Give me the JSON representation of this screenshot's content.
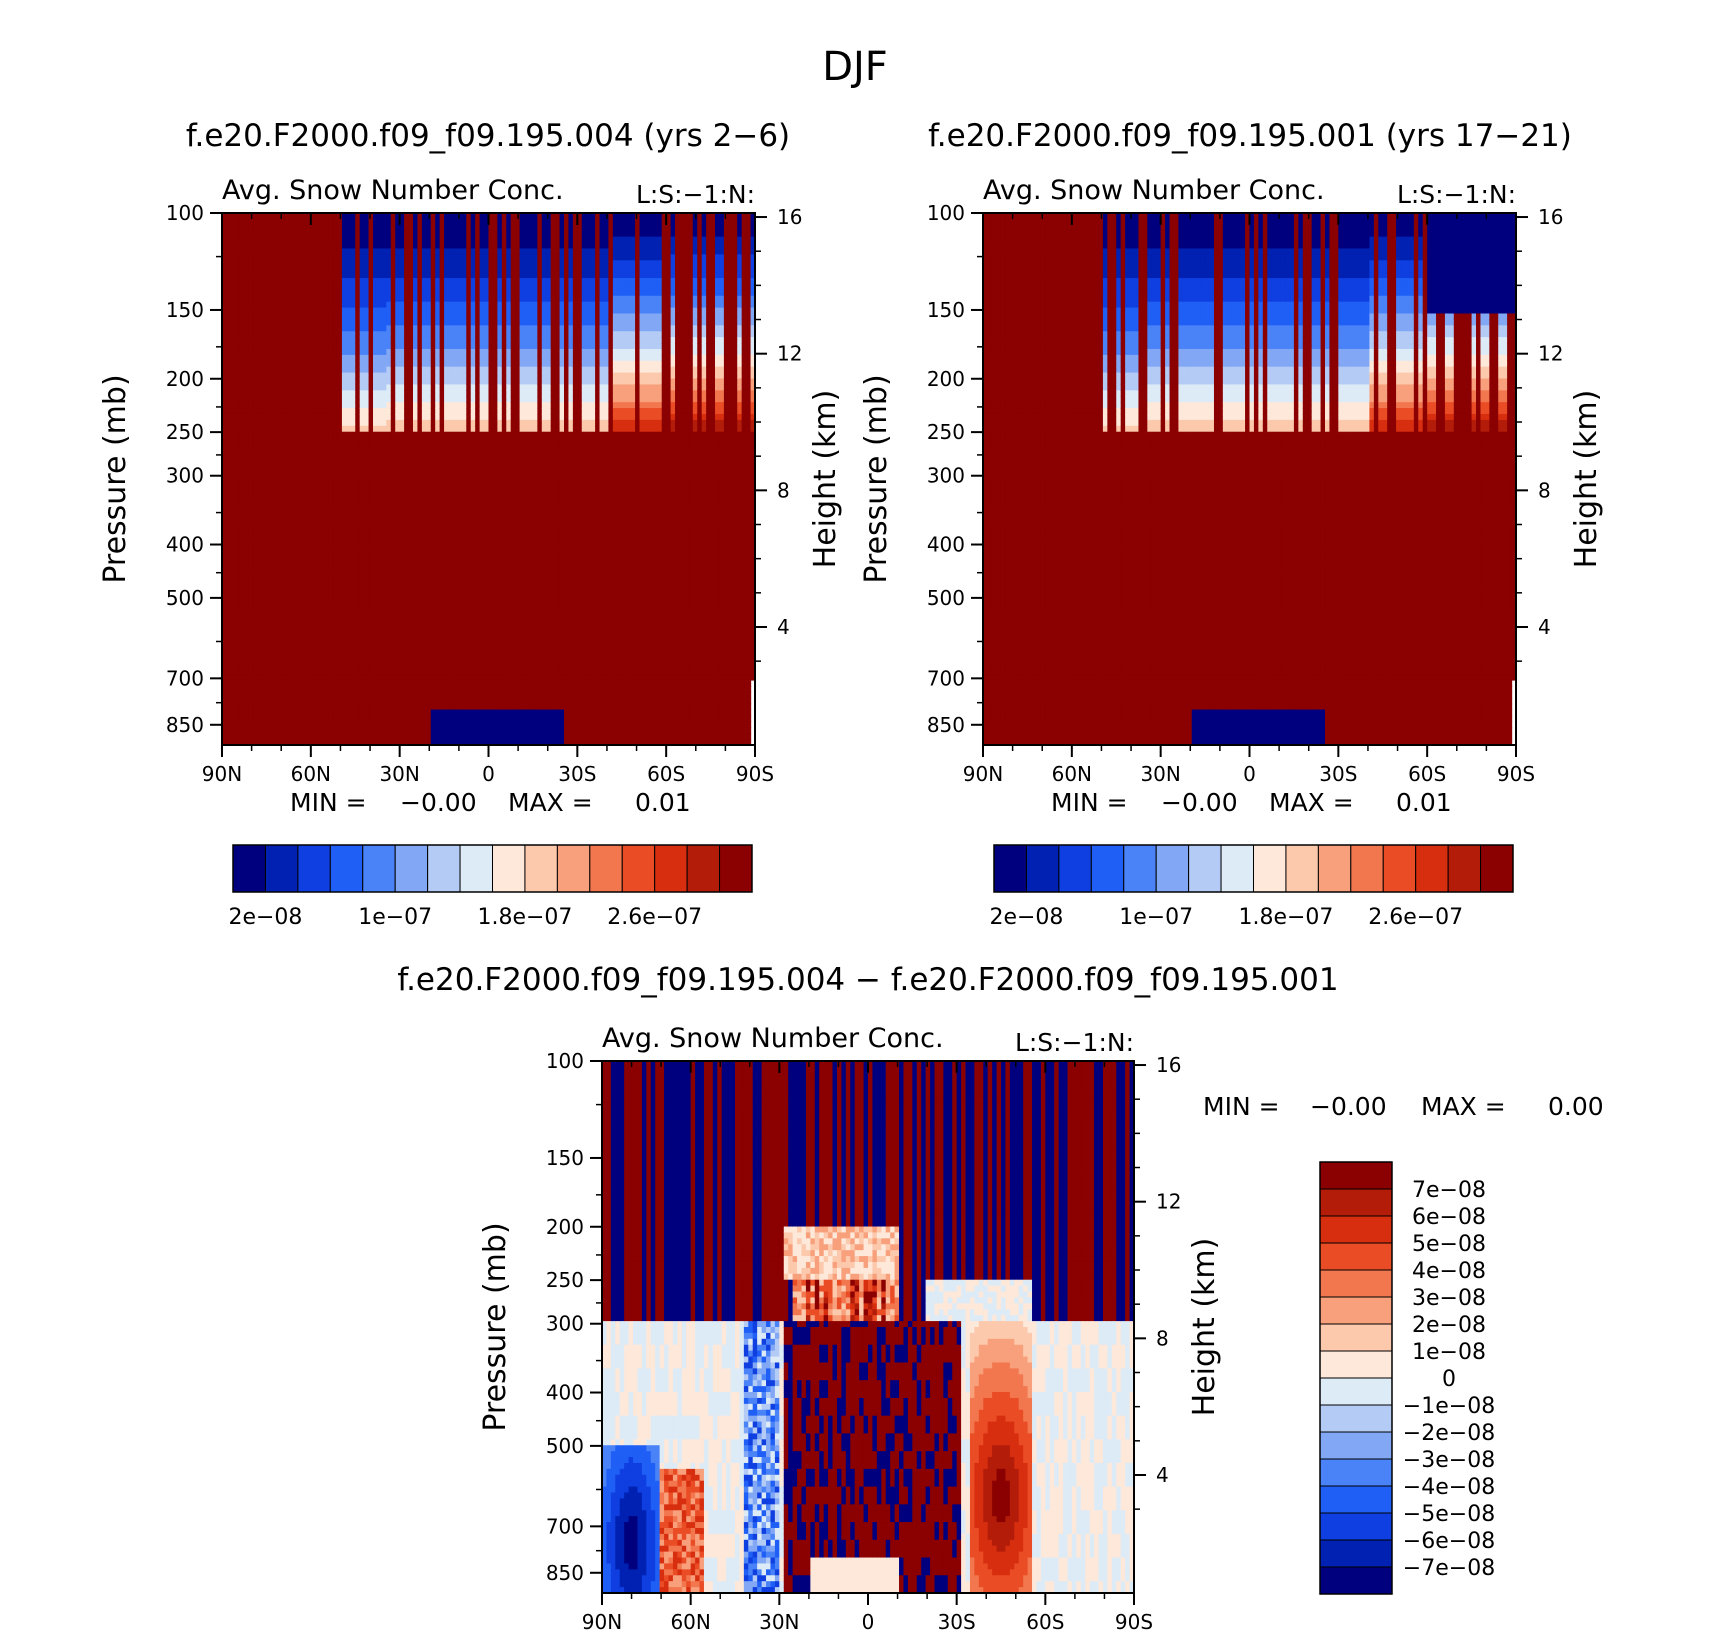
{
  "figure_title": "DJF",
  "colors": {
    "seq": [
      "#00007f",
      "#0021b2",
      "#0f3fe0",
      "#1f5ff6",
      "#4a83f7",
      "#82a8f5",
      "#b3cbf5",
      "#ddebf7",
      "#fde8d9",
      "#fcc9ad",
      "#f8a07c",
      "#f2774e",
      "#ea4c25",
      "#d82e10",
      "#b21c09",
      "#8b0000"
    ],
    "div": [
      "#00007f",
      "#0021b2",
      "#0f3fe0",
      "#1f5ff6",
      "#4a83f7",
      "#82a8f5",
      "#b3cbf5",
      "#ddebf7",
      "#fde8d9",
      "#fcc9ad",
      "#f8a07c",
      "#f2774e",
      "#ea4c25",
      "#d82e10",
      "#b21c09",
      "#8b0000"
    ]
  },
  "chart_data": [
    {
      "type": "heatmap",
      "title": "f.e20.F2000.f09_f09.195.004 (yrs 2-6)",
      "left_string": "Avg. Snow Number Conc.",
      "right_string": "L:S:-1:N:",
      "ylabel": "Pressure (mb)",
      "ylabel_right": "Height (km)",
      "x_ticks": [
        "90N",
        "60N",
        "30N",
        "0",
        "30S",
        "60S",
        "90S"
      ],
      "x_range": [
        90,
        -90
      ],
      "y_ticks": [
        "100",
        "150",
        "200",
        "250",
        "300",
        "400",
        "500",
        "700",
        "850"
      ],
      "y_tick_values": [
        100,
        150,
        200,
        250,
        300,
        400,
        500,
        700,
        850
      ],
      "y_range": [
        100,
        925
      ],
      "height_ticks": [
        "16",
        "12",
        "8",
        "4"
      ],
      "height_tick_values": [
        16,
        12,
        8,
        4
      ],
      "min_label": "MIN =",
      "min_value": "-0.00",
      "max_label": "MAX =",
      "max_value": "0.01",
      "colorbar_labels": [
        "2e-08",
        "1e-07",
        "1.8e-07",
        "2.6e-07"
      ],
      "colorbar_levels": [
        "<2e-08",
        "2e-08",
        "4e-08",
        "6e-08",
        "8e-08",
        "1e-07",
        "1.2e-07",
        "1.4e-07",
        "1.6e-07",
        "1.8e-07",
        "2e-07",
        "2.2e-07",
        "2.4e-07",
        "2.6e-07",
        "2.8e-07",
        ">2.8e-07"
      ],
      "field_summary": "Values exceed the top contour level almost everywhere below 250 mb; blue low values appear in the tropical upper troposphere (100-200 mb) and in a surface patch between 20N and 25S near 850 mb."
    },
    {
      "type": "heatmap",
      "title": "f.e20.F2000.f09_f09.195.001 (yrs 17-21)",
      "left_string": "Avg. Snow Number Conc.",
      "right_string": "L:S:-1:N:",
      "ylabel": "Pressure (mb)",
      "ylabel_right": "Height (km)",
      "x_ticks": [
        "90N",
        "60N",
        "30N",
        "0",
        "30S",
        "60S",
        "90S"
      ],
      "x_range": [
        90,
        -90
      ],
      "y_ticks": [
        "100",
        "150",
        "200",
        "250",
        "300",
        "400",
        "500",
        "700",
        "850"
      ],
      "y_tick_values": [
        100,
        150,
        200,
        250,
        300,
        400,
        500,
        700,
        850
      ],
      "y_range": [
        100,
        925
      ],
      "height_ticks": [
        "16",
        "12",
        "8",
        "4"
      ],
      "height_tick_values": [
        16,
        12,
        8,
        4
      ],
      "min_label": "MIN =",
      "min_value": "-0.00",
      "max_label": "MAX =",
      "max_value": "0.01",
      "colorbar_labels": [
        "2e-08",
        "1e-07",
        "1.8e-07",
        "2.6e-07"
      ],
      "colorbar_levels": [
        "<2e-08",
        "2e-08",
        "4e-08",
        "6e-08",
        "8e-08",
        "1e-07",
        "1.2e-07",
        "1.4e-07",
        "1.6e-07",
        "1.8e-07",
        "2e-07",
        "2.2e-07",
        "2.4e-07",
        "2.6e-07",
        "2.8e-07",
        ">2.8e-07"
      ],
      "field_summary": "Same structure as the first panel; additional low-value block poleward of 60S above 150 mb."
    },
    {
      "type": "heatmap",
      "title": "f.e20.F2000.f09_f09.195.004 - f.e20.F2000.f09_f09.195.001",
      "left_string": "Avg. Snow Number Conc.",
      "right_string": "L:S:-1:N:",
      "ylabel": "Pressure (mb)",
      "ylabel_right": "Height (km)",
      "x_ticks": [
        "90N",
        "60N",
        "30N",
        "0",
        "30S",
        "60S",
        "90S"
      ],
      "x_range": [
        90,
        -90
      ],
      "y_ticks": [
        "100",
        "150",
        "200",
        "250",
        "300",
        "400",
        "500",
        "700",
        "850"
      ],
      "y_tick_values": [
        100,
        150,
        200,
        250,
        300,
        400,
        500,
        700,
        850
      ],
      "y_range": [
        100,
        925
      ],
      "height_ticks": [
        "16",
        "12",
        "8",
        "4"
      ],
      "height_tick_values": [
        16,
        12,
        8,
        4
      ],
      "min_label": "MIN =",
      "min_value": "-0.00",
      "max_label": "MAX =",
      "max_value": "0.00",
      "colorbar_labels": [
        "7e-08",
        "6e-08",
        "5e-08",
        "4e-08",
        "3e-08",
        "2e-08",
        "1e-08",
        "0",
        "-1e-08",
        "-2e-08",
        "-3e-08",
        "-4e-08",
        "-5e-08",
        "-6e-08",
        "-7e-08"
      ],
      "field_summary": "Difference field with alternating positive and negative streaks above 300 mb, strong positive values over the tropics below 250 mb, and weak mixed values in high latitudes."
    }
  ]
}
